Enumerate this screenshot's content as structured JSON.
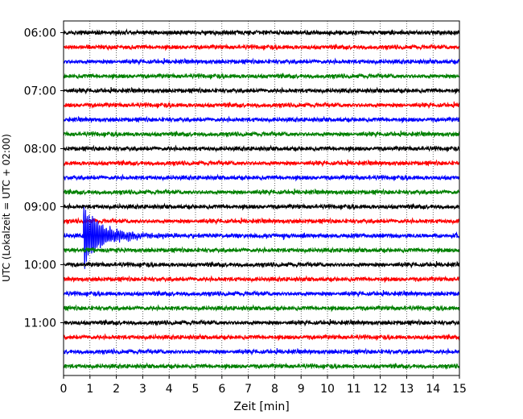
{
  "chart_data": {
    "type": "line",
    "title": "",
    "xlabel": "Zeit  [min]",
    "ylabel": "UTC (Lokalzeit = UTC + 02:00)",
    "xlim": [
      0,
      15
    ],
    "x_ticks": [
      "0",
      "1",
      "2",
      "3",
      "4",
      "5",
      "6",
      "7",
      "8",
      "9",
      "10",
      "11",
      "12",
      "13",
      "14",
      "15"
    ],
    "y_tick_labels": [
      "06:00",
      "07:00",
      "08:00",
      "09:00",
      "10:00",
      "11:00"
    ],
    "grid": "vertical dotted",
    "trace_interval_minutes": 15,
    "first_trace_utc": "06:00",
    "color_cycle": [
      "#000000",
      "#ff0000",
      "#0000ff",
      "#008000"
    ],
    "traces": [
      {
        "start": "06:00",
        "color": "#000000"
      },
      {
        "start": "06:15",
        "color": "#ff0000"
      },
      {
        "start": "06:30",
        "color": "#0000ff"
      },
      {
        "start": "06:45",
        "color": "#008000"
      },
      {
        "start": "07:00",
        "color": "#000000"
      },
      {
        "start": "07:15",
        "color": "#ff0000"
      },
      {
        "start": "07:30",
        "color": "#0000ff"
      },
      {
        "start": "07:45",
        "color": "#008000"
      },
      {
        "start": "08:00",
        "color": "#000000"
      },
      {
        "start": "08:15",
        "color": "#ff0000"
      },
      {
        "start": "08:30",
        "color": "#0000ff"
      },
      {
        "start": "08:45",
        "color": "#008000"
      },
      {
        "start": "09:00",
        "color": "#000000"
      },
      {
        "start": "09:15",
        "color": "#ff0000"
      },
      {
        "start": "09:30",
        "color": "#0000ff",
        "event": {
          "onset_min": 0.75,
          "decay_to_min": 4.5
        }
      },
      {
        "start": "09:45",
        "color": "#008000"
      },
      {
        "start": "10:00",
        "color": "#000000"
      },
      {
        "start": "10:15",
        "color": "#ff0000"
      },
      {
        "start": "10:30",
        "color": "#0000ff"
      },
      {
        "start": "10:45",
        "color": "#008000"
      },
      {
        "start": "11:00",
        "color": "#000000"
      },
      {
        "start": "11:15",
        "color": "#ff0000"
      },
      {
        "start": "11:30",
        "color": "#0000ff"
      },
      {
        "start": "11:45",
        "color": "#008000"
      }
    ]
  }
}
